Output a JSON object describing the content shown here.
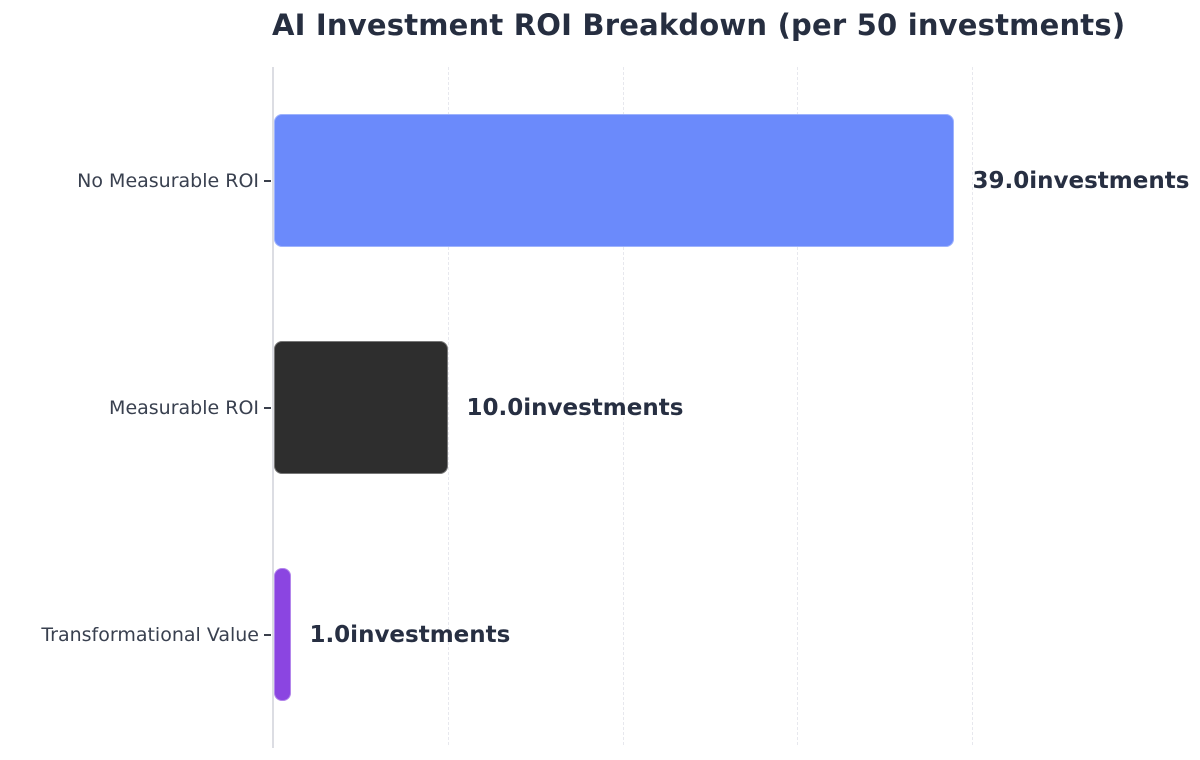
{
  "chart_data": {
    "type": "bar",
    "orientation": "horizontal",
    "title": "AI Investment ROI Breakdown (per 50 investments)",
    "categories": [
      "No Measurable ROI",
      "Measurable ROI",
      "Transformational Value"
    ],
    "values": [
      39.0,
      10.0,
      1.0
    ],
    "unit_suffix": "investments",
    "value_labels": [
      "39.0investments",
      "10.0investments",
      "1.0investments"
    ],
    "bar_colors": [
      "#6b8afb",
      "#2e2e2e",
      "#8b45e1"
    ],
    "xlim": [
      0,
      48.6
    ],
    "gridline_values": [
      10,
      20,
      30,
      40
    ],
    "grid_style": "vertical-dashed",
    "legend": "none",
    "x_tick_labels": "none",
    "total_investments": 50
  },
  "colors": {
    "background": "#ffffff",
    "title_text": "#262e40",
    "value_text": "#272f42",
    "category_text": "#39404f",
    "axis_spine": "#dcdde3",
    "gridline": "#e7e8ee",
    "tick_mark": "#3a3f4b"
  }
}
